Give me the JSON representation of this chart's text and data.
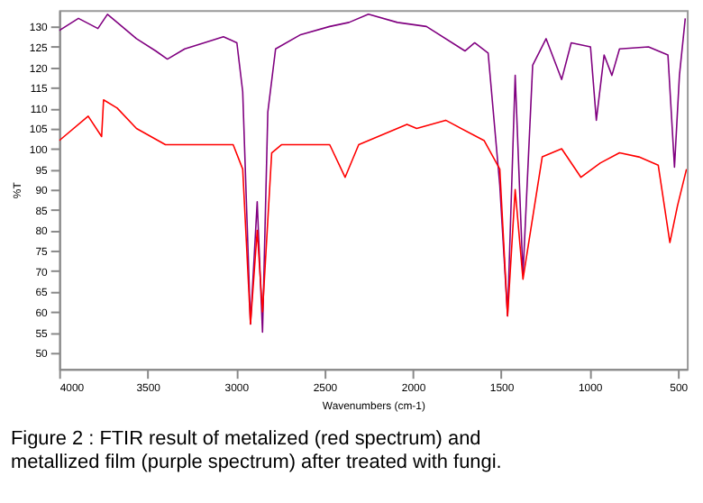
{
  "chart_data": {
    "type": "line",
    "xlabel": "Wavenumbers (cm-1)",
    "ylabel": "%T",
    "xlim": [
      4000,
      450
    ],
    "xticks": [
      4000,
      3500,
      3000,
      2500,
      2000,
      1500,
      1000,
      500
    ],
    "ylim": [
      46,
      134
    ],
    "yticks": [
      50,
      55,
      60,
      65,
      70,
      75,
      80,
      85,
      90,
      95,
      100,
      105,
      110,
      115,
      120,
      125,
      130
    ],
    "series": [
      {
        "color": "#800080",
        "x": [
          4000,
          3891,
          3781,
          3727,
          3672,
          3563,
          3454,
          3388,
          3290,
          3180,
          3071,
          2995,
          2962,
          2918,
          2880,
          2850,
          2820,
          2776,
          2634,
          2470,
          2361,
          2251,
          2087,
          1923,
          1705,
          1650,
          1574,
          1508,
          1464,
          1421,
          1377,
          1322,
          1246,
          1158,
          1104,
          995,
          962,
          918,
          874,
          831,
          667,
          557,
          520,
          492,
          459
        ],
        "values": [
          129,
          132,
          129.5,
          133,
          131,
          127,
          124,
          122,
          124.5,
          126,
          127.5,
          126,
          114,
          57,
          87,
          55,
          109,
          124.5,
          128,
          130,
          131,
          133,
          131,
          130,
          124,
          126,
          123.5,
          91,
          59,
          118,
          69,
          120.5,
          127,
          117,
          126,
          125,
          107,
          123,
          118,
          124.5,
          125,
          123,
          95.5,
          118,
          132
        ]
      },
      {
        "color": "#ff0000",
        "x": [
          4000,
          3836,
          3760,
          3749,
          3672,
          3563,
          3399,
          3016,
          2962,
          2918,
          2880,
          2850,
          2798,
          2743,
          2470,
          2383,
          2306,
          2033,
          1978,
          1814,
          1596,
          1508,
          1464,
          1421,
          1377,
          1268,
          1158,
          1049,
          940,
          831,
          721,
          612,
          546,
          503,
          452
        ],
        "values": [
          102,
          108,
          103,
          112,
          110,
          105,
          101,
          101,
          95,
          57,
          80,
          60,
          99,
          101,
          101,
          93,
          101,
          106,
          105,
          107,
          102,
          95,
          59,
          90,
          68,
          98,
          100,
          93,
          96.5,
          99,
          98,
          96,
          77,
          86,
          95
        ]
      }
    ],
    "annotations": [
      "Figure 2 : FTIR result of metalized (red spectrum) and metallized film (purple spectrum) after treated with fungi."
    ]
  }
}
